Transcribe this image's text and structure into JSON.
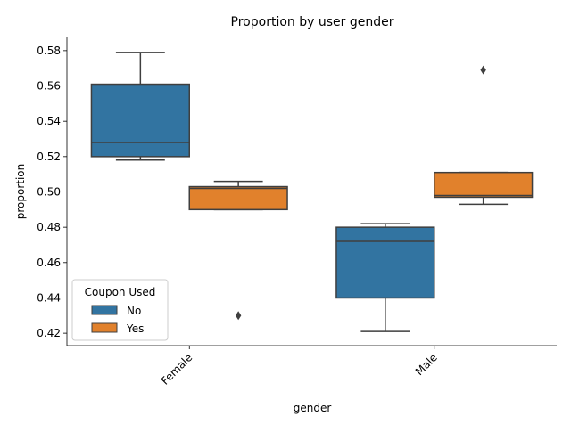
{
  "chart_data": {
    "type": "box",
    "title": "Proportion by user gender",
    "xlabel": "gender",
    "ylabel": "proportion",
    "categories": [
      "Female",
      "Male"
    ],
    "ylim": [
      0.413,
      0.588
    ],
    "yticks": [
      0.42,
      0.44,
      0.46,
      0.48,
      0.5,
      0.52,
      0.54,
      0.56,
      0.58
    ],
    "ytick_labels": [
      "0.42",
      "0.44",
      "0.46",
      "0.48",
      "0.50",
      "0.52",
      "0.54",
      "0.56",
      "0.58"
    ],
    "legend": {
      "title": "Coupon Used",
      "placement": "lower-left",
      "entries": [
        "No",
        "Yes"
      ]
    },
    "series": [
      {
        "name": "No",
        "color": "#3274a1",
        "boxes": [
          {
            "category": "Female",
            "whisker_low": 0.518,
            "q1": 0.52,
            "median": 0.528,
            "q3": 0.561,
            "whisker_high": 0.579,
            "outliers": []
          },
          {
            "category": "Male",
            "whisker_low": 0.421,
            "q1": 0.44,
            "median": 0.472,
            "q3": 0.48,
            "whisker_high": 0.482,
            "outliers": []
          }
        ]
      },
      {
        "name": "Yes",
        "color": "#e1812c",
        "boxes": [
          {
            "category": "Female",
            "whisker_low": 0.49,
            "q1": 0.49,
            "median": 0.502,
            "q3": 0.503,
            "whisker_high": 0.506,
            "outliers": [
              0.43
            ]
          },
          {
            "category": "Male",
            "whisker_low": 0.493,
            "q1": 0.497,
            "median": 0.498,
            "q3": 0.511,
            "whisker_high": 0.511,
            "outliers": [
              0.569
            ]
          }
        ]
      }
    ]
  }
}
